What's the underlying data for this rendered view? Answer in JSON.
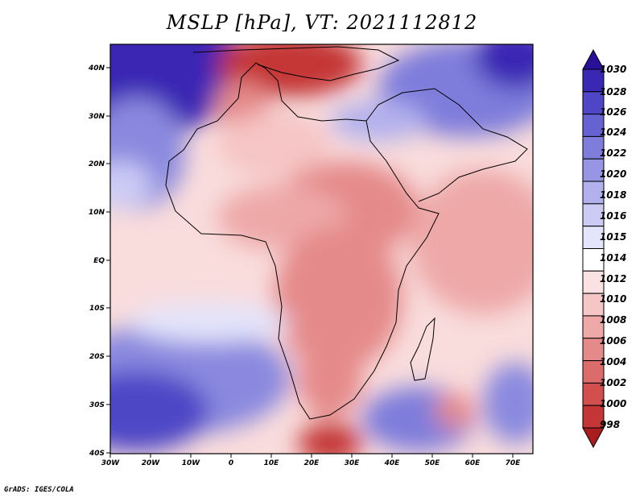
{
  "title": "MSLP [hPa], VT: 2021112812",
  "credit": "GrADS: IGES/COLA",
  "map": {
    "type": "contour",
    "region": "Africa and surrounding oceans",
    "lon_range": [
      -30,
      75
    ],
    "lat_range": [
      -40,
      45
    ],
    "lon_ticks": [
      "30W",
      "20W",
      "10W",
      "0",
      "10E",
      "20E",
      "30E",
      "40E",
      "50E",
      "60E",
      "70E"
    ],
    "lat_ticks": [
      "40N",
      "30N",
      "20N",
      "10N",
      "EQ",
      "10S",
      "20S",
      "30S",
      "40S"
    ]
  },
  "colorbar": {
    "levels": [
      "1030",
      "1028",
      "1026",
      "1024",
      "1022",
      "1020",
      "1018",
      "1016",
      "1015",
      "1014",
      "1012",
      "1010",
      "1008",
      "1006",
      "1004",
      "1002",
      "1000",
      "998"
    ],
    "colors": [
      "#2a0f9a",
      "#3a27b4",
      "#4e46c6",
      "#6662d1",
      "#7e7ddb",
      "#9896e4",
      "#b2b1ed",
      "#cccbf5",
      "#e4e4fb",
      "#ffffff",
      "#fbe2e2",
      "#f6c5c5",
      "#eea8a8",
      "#e58a8a",
      "#dc6b6b",
      "#d24f4f",
      "#c43535",
      "#a81d1d"
    ]
  }
}
